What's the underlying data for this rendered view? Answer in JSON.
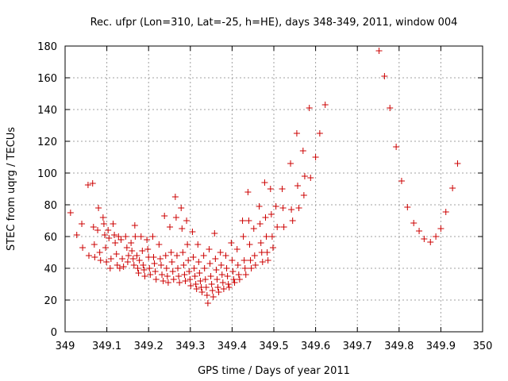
{
  "chart_data": {
    "type": "scatter",
    "title": "Rec. ufpr (Lon=310, Lat=-25, h=HE), days 348-349, 2011, window 004",
    "xlabel": "GPS time / Days of year 2011",
    "ylabel": "STEC from uqrg / TECUs",
    "xlim": [
      349,
      350
    ],
    "ylim": [
      0,
      180
    ],
    "xticks": [
      "349",
      "349.1",
      "349.2",
      "349.3",
      "349.4",
      "349.5",
      "349.6",
      "349.7",
      "349.8",
      "349.9",
      "350"
    ],
    "yticks": [
      "0",
      "20",
      "40",
      "60",
      "80",
      "100",
      "120",
      "140",
      "160",
      "180"
    ],
    "grid": true,
    "marker": "+",
    "marker_color": "#cc0000",
    "series": [
      {
        "points": [
          [
            349.013,
            75
          ],
          [
            349.028,
            61
          ],
          [
            349.04,
            68
          ],
          [
            349.042,
            53
          ],
          [
            349.055,
            92.5
          ],
          [
            349.057,
            48
          ],
          [
            349.066,
            93.5
          ],
          [
            349.068,
            66
          ],
          [
            349.07,
            55
          ],
          [
            349.071,
            47
          ],
          [
            349.078,
            64
          ],
          [
            349.08,
            78
          ],
          [
            349.083,
            50
          ],
          [
            349.085,
            45
          ],
          [
            349.091,
            72
          ],
          [
            349.093,
            68
          ],
          [
            349.095,
            61
          ],
          [
            349.097,
            53
          ],
          [
            349.099,
            44
          ],
          [
            349.103,
            64
          ],
          [
            349.105,
            59
          ],
          [
            349.108,
            40
          ],
          [
            349.11,
            46
          ],
          [
            349.115,
            68
          ],
          [
            349.118,
            61
          ],
          [
            349.12,
            56
          ],
          [
            349.123,
            49
          ],
          [
            349.125,
            42
          ],
          [
            349.128,
            60
          ],
          [
            349.131,
            40
          ],
          [
            349.134,
            58
          ],
          [
            349.137,
            46
          ],
          [
            349.14,
            41
          ],
          [
            349.145,
            60
          ],
          [
            349.148,
            53
          ],
          [
            349.15,
            44
          ],
          [
            349.152,
            48
          ],
          [
            349.158,
            56
          ],
          [
            349.16,
            51
          ],
          [
            349.163,
            46
          ],
          [
            349.165,
            42
          ],
          [
            349.167,
            67
          ],
          [
            349.168,
            60
          ],
          [
            349.172,
            48
          ],
          [
            349.174,
            40
          ],
          [
            349.176,
            37
          ],
          [
            349.178,
            45
          ],
          [
            349.182,
            60
          ],
          [
            349.185,
            51
          ],
          [
            349.187,
            42
          ],
          [
            349.189,
            39
          ],
          [
            349.191,
            35
          ],
          [
            349.196,
            58
          ],
          [
            349.198,
            52
          ],
          [
            349.2,
            47
          ],
          [
            349.202,
            40
          ],
          [
            349.204,
            36
          ],
          [
            349.21,
            60
          ],
          [
            349.212,
            47
          ],
          [
            349.214,
            43
          ],
          [
            349.216,
            38
          ],
          [
            349.218,
            33
          ],
          [
            349.225,
            55
          ],
          [
            349.228,
            46
          ],
          [
            349.23,
            42
          ],
          [
            349.232,
            36
          ],
          [
            349.235,
            32
          ],
          [
            349.238,
            73
          ],
          [
            349.241,
            48
          ],
          [
            349.243,
            40
          ],
          [
            349.245,
            35
          ],
          [
            349.247,
            31
          ],
          [
            349.251,
            66
          ],
          [
            349.254,
            50
          ],
          [
            349.256,
            44
          ],
          [
            349.258,
            38
          ],
          [
            349.26,
            33
          ],
          [
            349.264,
            85
          ],
          [
            349.266,
            72
          ],
          [
            349.268,
            48
          ],
          [
            349.27,
            40
          ],
          [
            349.272,
            35
          ],
          [
            349.274,
            31
          ],
          [
            349.278,
            78
          ],
          [
            349.28,
            65
          ],
          [
            349.282,
            50
          ],
          [
            349.284,
            42
          ],
          [
            349.286,
            36
          ],
          [
            349.288,
            32
          ],
          [
            349.291,
            70
          ],
          [
            349.293,
            55
          ],
          [
            349.295,
            45
          ],
          [
            349.297,
            38
          ],
          [
            349.299,
            33
          ],
          [
            349.301,
            29
          ],
          [
            349.305,
            63
          ],
          [
            349.307,
            47
          ],
          [
            349.309,
            40
          ],
          [
            349.311,
            35
          ],
          [
            349.313,
            30
          ],
          [
            349.315,
            27
          ],
          [
            349.318,
            55
          ],
          [
            349.32,
            44
          ],
          [
            349.322,
            37
          ],
          [
            349.324,
            32
          ],
          [
            349.326,
            28
          ],
          [
            349.328,
            25
          ],
          [
            349.332,
            48
          ],
          [
            349.334,
            40
          ],
          [
            349.336,
            33
          ],
          [
            349.338,
            28
          ],
          [
            349.34,
            23
          ],
          [
            349.342,
            18
          ],
          [
            349.345,
            52
          ],
          [
            349.347,
            43
          ],
          [
            349.349,
            35
          ],
          [
            349.351,
            30
          ],
          [
            349.353,
            26
          ],
          [
            349.355,
            22
          ],
          [
            349.358,
            62
          ],
          [
            349.36,
            46
          ],
          [
            349.362,
            39
          ],
          [
            349.364,
            33
          ],
          [
            349.366,
            28
          ],
          [
            349.368,
            25
          ],
          [
            349.372,
            50
          ],
          [
            349.374,
            42
          ],
          [
            349.376,
            36
          ],
          [
            349.378,
            31
          ],
          [
            349.38,
            27
          ],
          [
            349.385,
            48
          ],
          [
            349.387,
            40
          ],
          [
            349.389,
            35
          ],
          [
            349.391,
            30
          ],
          [
            349.393,
            28
          ],
          [
            349.398,
            56
          ],
          [
            349.4,
            45
          ],
          [
            349.402,
            38
          ],
          [
            349.404,
            33
          ],
          [
            349.406,
            31
          ],
          [
            349.412,
            52
          ],
          [
            349.414,
            42
          ],
          [
            349.416,
            36
          ],
          [
            349.418,
            33
          ],
          [
            349.425,
            70
          ],
          [
            349.427,
            60
          ],
          [
            349.429,
            45
          ],
          [
            349.431,
            40
          ],
          [
            349.433,
            36
          ],
          [
            349.438,
            88
          ],
          [
            349.44,
            70
          ],
          [
            349.442,
            55
          ],
          [
            349.444,
            45
          ],
          [
            349.446,
            40
          ],
          [
            349.452,
            65
          ],
          [
            349.454,
            48
          ],
          [
            349.456,
            42
          ],
          [
            349.465,
            79
          ],
          [
            349.467,
            68
          ],
          [
            349.469,
            56
          ],
          [
            349.471,
            50
          ],
          [
            349.473,
            44
          ],
          [
            349.478,
            94
          ],
          [
            349.48,
            72
          ],
          [
            349.482,
            60
          ],
          [
            349.484,
            50
          ],
          [
            349.486,
            45
          ],
          [
            349.492,
            90
          ],
          [
            349.494,
            74
          ],
          [
            349.496,
            60
          ],
          [
            349.498,
            53
          ],
          [
            349.505,
            79
          ],
          [
            349.508,
            66
          ],
          [
            349.52,
            90
          ],
          [
            349.522,
            78
          ],
          [
            349.524,
            66
          ],
          [
            349.54,
            106
          ],
          [
            349.542,
            77
          ],
          [
            349.545,
            70
          ],
          [
            349.555,
            125
          ],
          [
            349.557,
            92
          ],
          [
            349.56,
            78
          ],
          [
            349.57,
            114
          ],
          [
            349.572,
            86
          ],
          [
            349.574,
            98
          ],
          [
            349.585,
            141
          ],
          [
            349.588,
            97
          ],
          [
            349.6,
            110
          ],
          [
            349.61,
            125
          ],
          [
            349.623,
            143
          ],
          [
            349.752,
            177
          ],
          [
            349.765,
            161
          ],
          [
            349.778,
            141
          ],
          [
            349.793,
            116.5
          ],
          [
            349.806,
            95
          ],
          [
            349.82,
            78.5
          ],
          [
            349.835,
            68.5
          ],
          [
            349.848,
            63.5
          ],
          [
            349.86,
            58.5
          ],
          [
            349.875,
            56.5
          ],
          [
            349.888,
            60
          ],
          [
            349.9,
            65
          ],
          [
            349.912,
            75.5
          ],
          [
            349.928,
            90.5
          ],
          [
            349.94,
            106
          ]
        ]
      }
    ]
  }
}
